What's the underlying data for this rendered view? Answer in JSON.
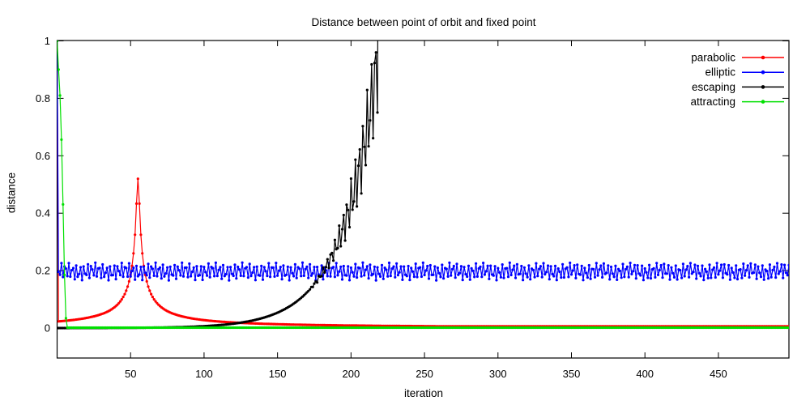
{
  "chart_data": {
    "type": "line",
    "title": "Distance between point of orbit and fixed point",
    "xlabel": "iteration",
    "ylabel": "distance",
    "x_range": [
      0,
      498
    ],
    "y_range_drawn": [
      -0.105,
      1
    ],
    "x_ticks": [
      50,
      100,
      150,
      200,
      250,
      300,
      350,
      400,
      450
    ],
    "y_ticks": [
      0,
      0.2,
      0.4,
      0.6,
      0.8,
      1
    ],
    "grid": false,
    "background": "#ffffff",
    "border_color": "#000000",
    "point_style": "filled-circle",
    "legend": {
      "position": "top-right-inside",
      "entries": [
        "parabolic",
        "elliptic",
        "escaping",
        "attracting"
      ]
    },
    "series": [
      {
        "name": "parabolic",
        "color": "#ff0000",
        "style": "linespoints",
        "model": {
          "kind": "peak_inverse",
          "start_at_one": true,
          "peak_x": 55,
          "peak_cap": 0.52,
          "k": 1.3,
          "w": 2.0,
          "floor": 0.006,
          "x_start": 0,
          "x_end": 498
        },
        "key_points": {
          "start": {
            "x": 0,
            "y": 1.0
          },
          "early": {
            "x": 1,
            "y": 0.023
          },
          "peak": {
            "x": 55,
            "y": 0.52
          },
          "after_peak": {
            "x": 150,
            "y": 0.013
          },
          "end": {
            "x": 498,
            "y": 0.006
          }
        }
      },
      {
        "name": "elliptic",
        "color": "#0000ff",
        "style": "linespoints",
        "model": {
          "kind": "quasiperiodic",
          "start_at_one": true,
          "mean": 0.197,
          "amp1": 0.026,
          "freq1": 2.45,
          "phase1": 0.8,
          "amp2": 0.005,
          "freq2": 0.31,
          "x_start": 0,
          "x_end": 498
        },
        "key_points": {
          "start": {
            "x": 0,
            "y": 1.0
          },
          "band_center": 0.197,
          "band_min": 0.166,
          "band_max": 0.228
        }
      },
      {
        "name": "escaping",
        "color": "#000000",
        "style": "linespoints",
        "model": {
          "kind": "exp_escape",
          "a": 0.0001,
          "rate": 0.0419,
          "osc_amp": 0.2,
          "osc_freq": 2.3,
          "osc_start": 170,
          "osc_ramp": 30,
          "x_start": 0,
          "x_end": 240,
          "cap": 2.0
        },
        "key_points": {
          "start": {
            "x": 0,
            "y": 0.0001
          },
          "emerges": {
            "x": 105,
            "y": 0.008
          },
          "crosses_elliptic_band_x": 188,
          "last_visible_point": {
            "x": 218,
            "y": 0.78
          },
          "escapes_off_top_x": 219
        }
      },
      {
        "name": "attracting",
        "color": "#00e000",
        "style": "linespoints",
        "model": {
          "kind": "superattracting",
          "start_at_one": true,
          "d0": 0.9,
          "floor": 0.0015,
          "x_start": 0,
          "x_end": 498
        },
        "key_points": {
          "start": {
            "x": 0,
            "y": 1.0
          },
          "decay_sequence": [
            0.9,
            0.81,
            0.656,
            0.43,
            0.185,
            0.034
          ],
          "end": {
            "x": 498,
            "y": 0.0015
          }
        }
      }
    ]
  }
}
